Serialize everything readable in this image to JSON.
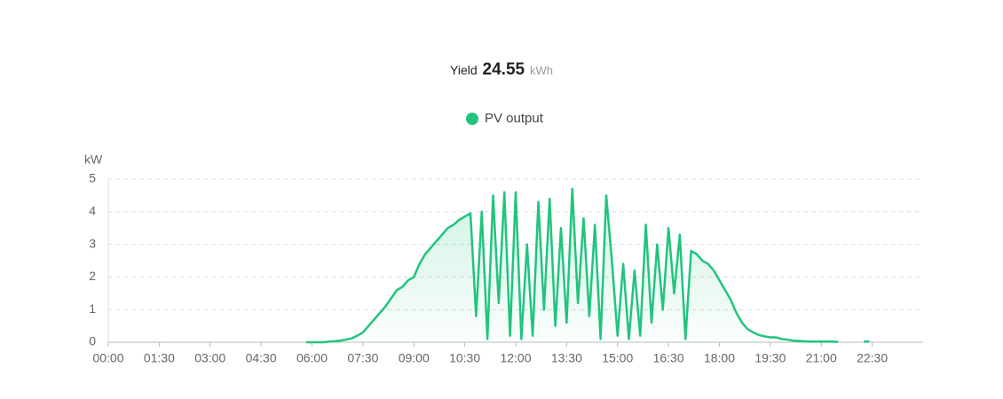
{
  "chart_data": {
    "type": "area",
    "title": "Yield",
    "total": 24.55,
    "total_unit": "kWh",
    "y_label": "kW",
    "x": [
      350,
      360,
      370,
      380,
      390,
      400,
      410,
      420,
      430,
      440,
      450,
      460,
      470,
      480,
      490,
      500,
      510,
      520,
      530,
      540,
      550,
      560,
      570,
      580,
      590,
      600,
      610,
      620,
      630,
      640,
      650,
      660,
      670,
      680,
      690,
      700,
      710,
      720,
      730,
      740,
      750,
      760,
      770,
      780,
      790,
      800,
      810,
      820,
      830,
      840,
      850,
      860,
      870,
      880,
      890,
      900,
      910,
      920,
      930,
      940,
      950,
      960,
      970,
      980,
      990,
      1000,
      1010,
      1020,
      1030,
      1040,
      1050,
      1060,
      1070,
      1080,
      1090,
      1100,
      1110,
      1120,
      1130,
      1140,
      1150,
      1160,
      1170,
      1180,
      1190,
      1200,
      1210,
      1220,
      1230,
      1240,
      1250,
      1260,
      1270,
      1280,
      1290,
      1300,
      1335,
      1345
    ],
    "series": [
      {
        "name": "PV output",
        "color": "#22c47e",
        "values": [
          0,
          0,
          0,
          0,
          0.02,
          0.03,
          0.05,
          0.08,
          0.12,
          0.2,
          0.3,
          0.5,
          0.7,
          0.9,
          1.1,
          1.35,
          1.6,
          1.7,
          1.9,
          2.0,
          2.4,
          2.7,
          2.9,
          3.1,
          3.3,
          3.5,
          3.6,
          3.75,
          3.85,
          3.95,
          0.8,
          4.0,
          0.1,
          4.5,
          1.2,
          4.6,
          0.2,
          4.6,
          0.1,
          3.0,
          0.2,
          4.3,
          1.0,
          4.4,
          0.5,
          3.5,
          0.6,
          4.7,
          1.2,
          3.8,
          0.8,
          3.6,
          0.1,
          4.5,
          2.5,
          0.2,
          2.4,
          0.1,
          2.2,
          0.2,
          3.6,
          0.6,
          3.0,
          1.0,
          3.5,
          1.5,
          3.3,
          0.1,
          2.8,
          2.7,
          2.5,
          2.4,
          2.2,
          1.9,
          1.6,
          1.3,
          0.9,
          0.6,
          0.4,
          0.3,
          0.22,
          0.18,
          0.15,
          0.15,
          0.1,
          0.08,
          0.05,
          0.04,
          0.03,
          0.02,
          0.02,
          0.02,
          0.02,
          0.02,
          0.01,
          null,
          0.02,
          0.02
        ]
      }
    ],
    "xlim": [
      0,
      1440
    ],
    "xticks": [
      {
        "value": 0,
        "label": "00:00"
      },
      {
        "value": 90,
        "label": "01:30"
      },
      {
        "value": 180,
        "label": "03:00"
      },
      {
        "value": 270,
        "label": "04:30"
      },
      {
        "value": 360,
        "label": "06:00"
      },
      {
        "value": 450,
        "label": "07:30"
      },
      {
        "value": 540,
        "label": "09:00"
      },
      {
        "value": 630,
        "label": "10:30"
      },
      {
        "value": 720,
        "label": "12:00"
      },
      {
        "value": 810,
        "label": "13:30"
      },
      {
        "value": 900,
        "label": "15:00"
      },
      {
        "value": 990,
        "label": "16:30"
      },
      {
        "value": 1080,
        "label": "18:00"
      },
      {
        "value": 1170,
        "label": "19:30"
      },
      {
        "value": 1260,
        "label": "21:00"
      },
      {
        "value": 1350,
        "label": "22:30"
      }
    ],
    "ylim": [
      0,
      5
    ],
    "yticks": [
      0,
      1,
      2,
      3,
      4,
      5
    ],
    "grid": true
  }
}
